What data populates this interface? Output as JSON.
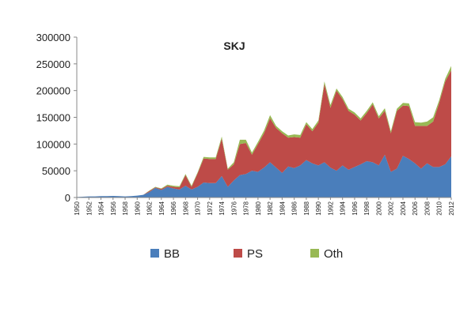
{
  "chart_data": {
    "type": "area",
    "stacked": true,
    "title": "SKJ",
    "xlabel": "",
    "ylabel": "",
    "ylim": [
      0,
      300000
    ],
    "yticks": [
      0,
      50000,
      100000,
      150000,
      200000,
      250000,
      300000
    ],
    "ytick_labels": [
      "0",
      "50000",
      "100000",
      "150000",
      "200000",
      "250000",
      "300000"
    ],
    "xticks": [
      1950,
      1952,
      1954,
      1956,
      1958,
      1960,
      1962,
      1964,
      1966,
      1968,
      1970,
      1972,
      1974,
      1976,
      1978,
      1980,
      1982,
      1984,
      1986,
      1988,
      1990,
      1992,
      1994,
      1996,
      1998,
      2000,
      2002,
      2004,
      2006,
      2008,
      2010,
      2012
    ],
    "xtick_labels": [
      "1950",
      "1952",
      "1954",
      "1956",
      "1958",
      "1960",
      "1962",
      "1964",
      "1966",
      "1968",
      "1970",
      "1972",
      "1974",
      "1976",
      "1978",
      "1980",
      "1982",
      "1984",
      "1986",
      "1988",
      "1990",
      "1992",
      "1994",
      "1996",
      "1998",
      "2000",
      "2002",
      "2004",
      "2006",
      "2008",
      "2010",
      "2012"
    ],
    "x": [
      1950,
      1951,
      1952,
      1953,
      1954,
      1955,
      1956,
      1957,
      1958,
      1959,
      1960,
      1961,
      1962,
      1963,
      1964,
      1965,
      1966,
      1967,
      1968,
      1969,
      1970,
      1971,
      1972,
      1973,
      1974,
      1975,
      1976,
      1977,
      1978,
      1979,
      1980,
      1981,
      1982,
      1983,
      1984,
      1985,
      1986,
      1987,
      1988,
      1989,
      1990,
      1991,
      1992,
      1993,
      1994,
      1995,
      1996,
      1997,
      1998,
      1999,
      2000,
      2001,
      2002,
      2003,
      2004,
      2005,
      2006,
      2007,
      2008,
      2009,
      2010,
      2011,
      2012
    ],
    "grid": false,
    "legend_position": "bottom",
    "series": [
      {
        "name": "BB",
        "color": "#4a7ebb",
        "values": [
          1000,
          1500,
          2000,
          2000,
          2500,
          2500,
          3000,
          2500,
          2000,
          2500,
          3500,
          5000,
          10000,
          18000,
          14000,
          20000,
          17000,
          15000,
          22000,
          15000,
          20000,
          28000,
          27000,
          27000,
          40000,
          20000,
          32000,
          42000,
          44000,
          50000,
          48000,
          56000,
          66000,
          56000,
          46000,
          58000,
          55000,
          60000,
          70000,
          64000,
          60000,
          66000,
          56000,
          50000,
          60000,
          52000,
          57000,
          62000,
          68000,
          66000,
          60000,
          80000,
          48000,
          54000,
          78000,
          72000,
          64000,
          54000,
          64000,
          57000,
          57000,
          62000,
          77000
        ]
      },
      {
        "name": "PS",
        "color": "#be4b48",
        "values": [
          0,
          0,
          0,
          0,
          0,
          0,
          0,
          0,
          0,
          0,
          0,
          0,
          2000,
          1000,
          2000,
          2000,
          3000,
          4000,
          20000,
          5000,
          25000,
          45000,
          45000,
          45000,
          70000,
          32000,
          30000,
          58000,
          58000,
          30000,
          52000,
          64000,
          82000,
          74000,
          74000,
          54000,
          58000,
          52000,
          67000,
          60000,
          80000,
          146000,
          112000,
          150000,
          124000,
          110000,
          98000,
          82000,
          90000,
          108000,
          88000,
          82000,
          72000,
          108000,
          94000,
          99000,
          70000,
          80000,
          70000,
          85000,
          120000,
          155000,
          161000
        ]
      },
      {
        "name": "Oth",
        "color": "#98b954",
        "values": [
          0,
          0,
          0,
          0,
          0,
          0,
          0,
          0,
          0,
          0,
          0,
          0,
          1000,
          1000,
          1000,
          2000,
          2000,
          2000,
          2000,
          2000,
          2000,
          3000,
          3000,
          3000,
          4000,
          2000,
          4000,
          8000,
          6000,
          4000,
          4000,
          5000,
          6000,
          4000,
          4000,
          4000,
          5000,
          5000,
          4000,
          4000,
          4000,
          5000,
          5000,
          4000,
          4000,
          4000,
          4000,
          4000,
          4000,
          4000,
          4000,
          5000,
          4000,
          4000,
          5000,
          5000,
          7000,
          6000,
          8000,
          8000,
          5000,
          5000,
          8000
        ]
      }
    ]
  }
}
